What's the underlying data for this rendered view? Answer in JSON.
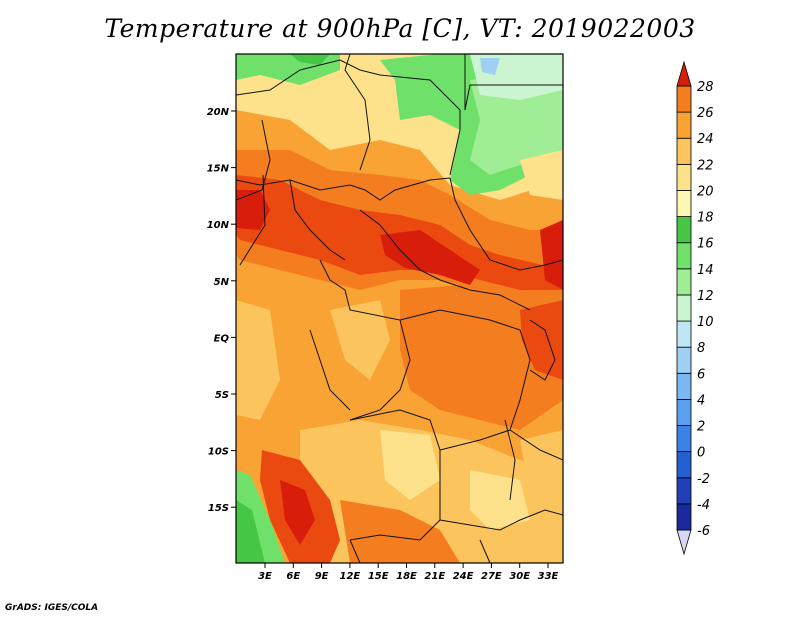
{
  "title": "Temperature at 900hPa [C], VT: 2019022003",
  "credit": "GrADS: IGES/COLA",
  "map": {
    "lon_ticks": [
      "3E",
      "6E",
      "9E",
      "12E",
      "15E",
      "18E",
      "21E",
      "24E",
      "27E",
      "30E",
      "33E"
    ],
    "lat_ticks": [
      "20N",
      "15N",
      "10N",
      "5N",
      "EQ",
      "5S",
      "10S",
      "15S"
    ]
  },
  "colorbar": {
    "levels": [
      "28",
      "26",
      "24",
      "22",
      "20",
      "18",
      "16",
      "14",
      "12",
      "10",
      "8",
      "6",
      "4",
      "2",
      "0",
      "-2",
      "-4",
      "-6"
    ],
    "colors": [
      "#d7d7f5",
      "#1a2a9a",
      "#1f40b6",
      "#2560d0",
      "#3a82e6",
      "#5aa0ee",
      "#7ab8f2",
      "#9fd0f4",
      "#bfe6f5",
      "#cbf5d0",
      "#9fee96",
      "#6fe06a",
      "#45c645",
      "#fdf7b4",
      "#fde28b",
      "#fbc45c",
      "#f8a334",
      "#f47d1f",
      "#ea4a10",
      "#d81e0a"
    ]
  },
  "colors": {
    "land_warm": "#f4a23a",
    "land_hot": "#ea4a10",
    "ocean_cool": "#6fe06a"
  }
}
